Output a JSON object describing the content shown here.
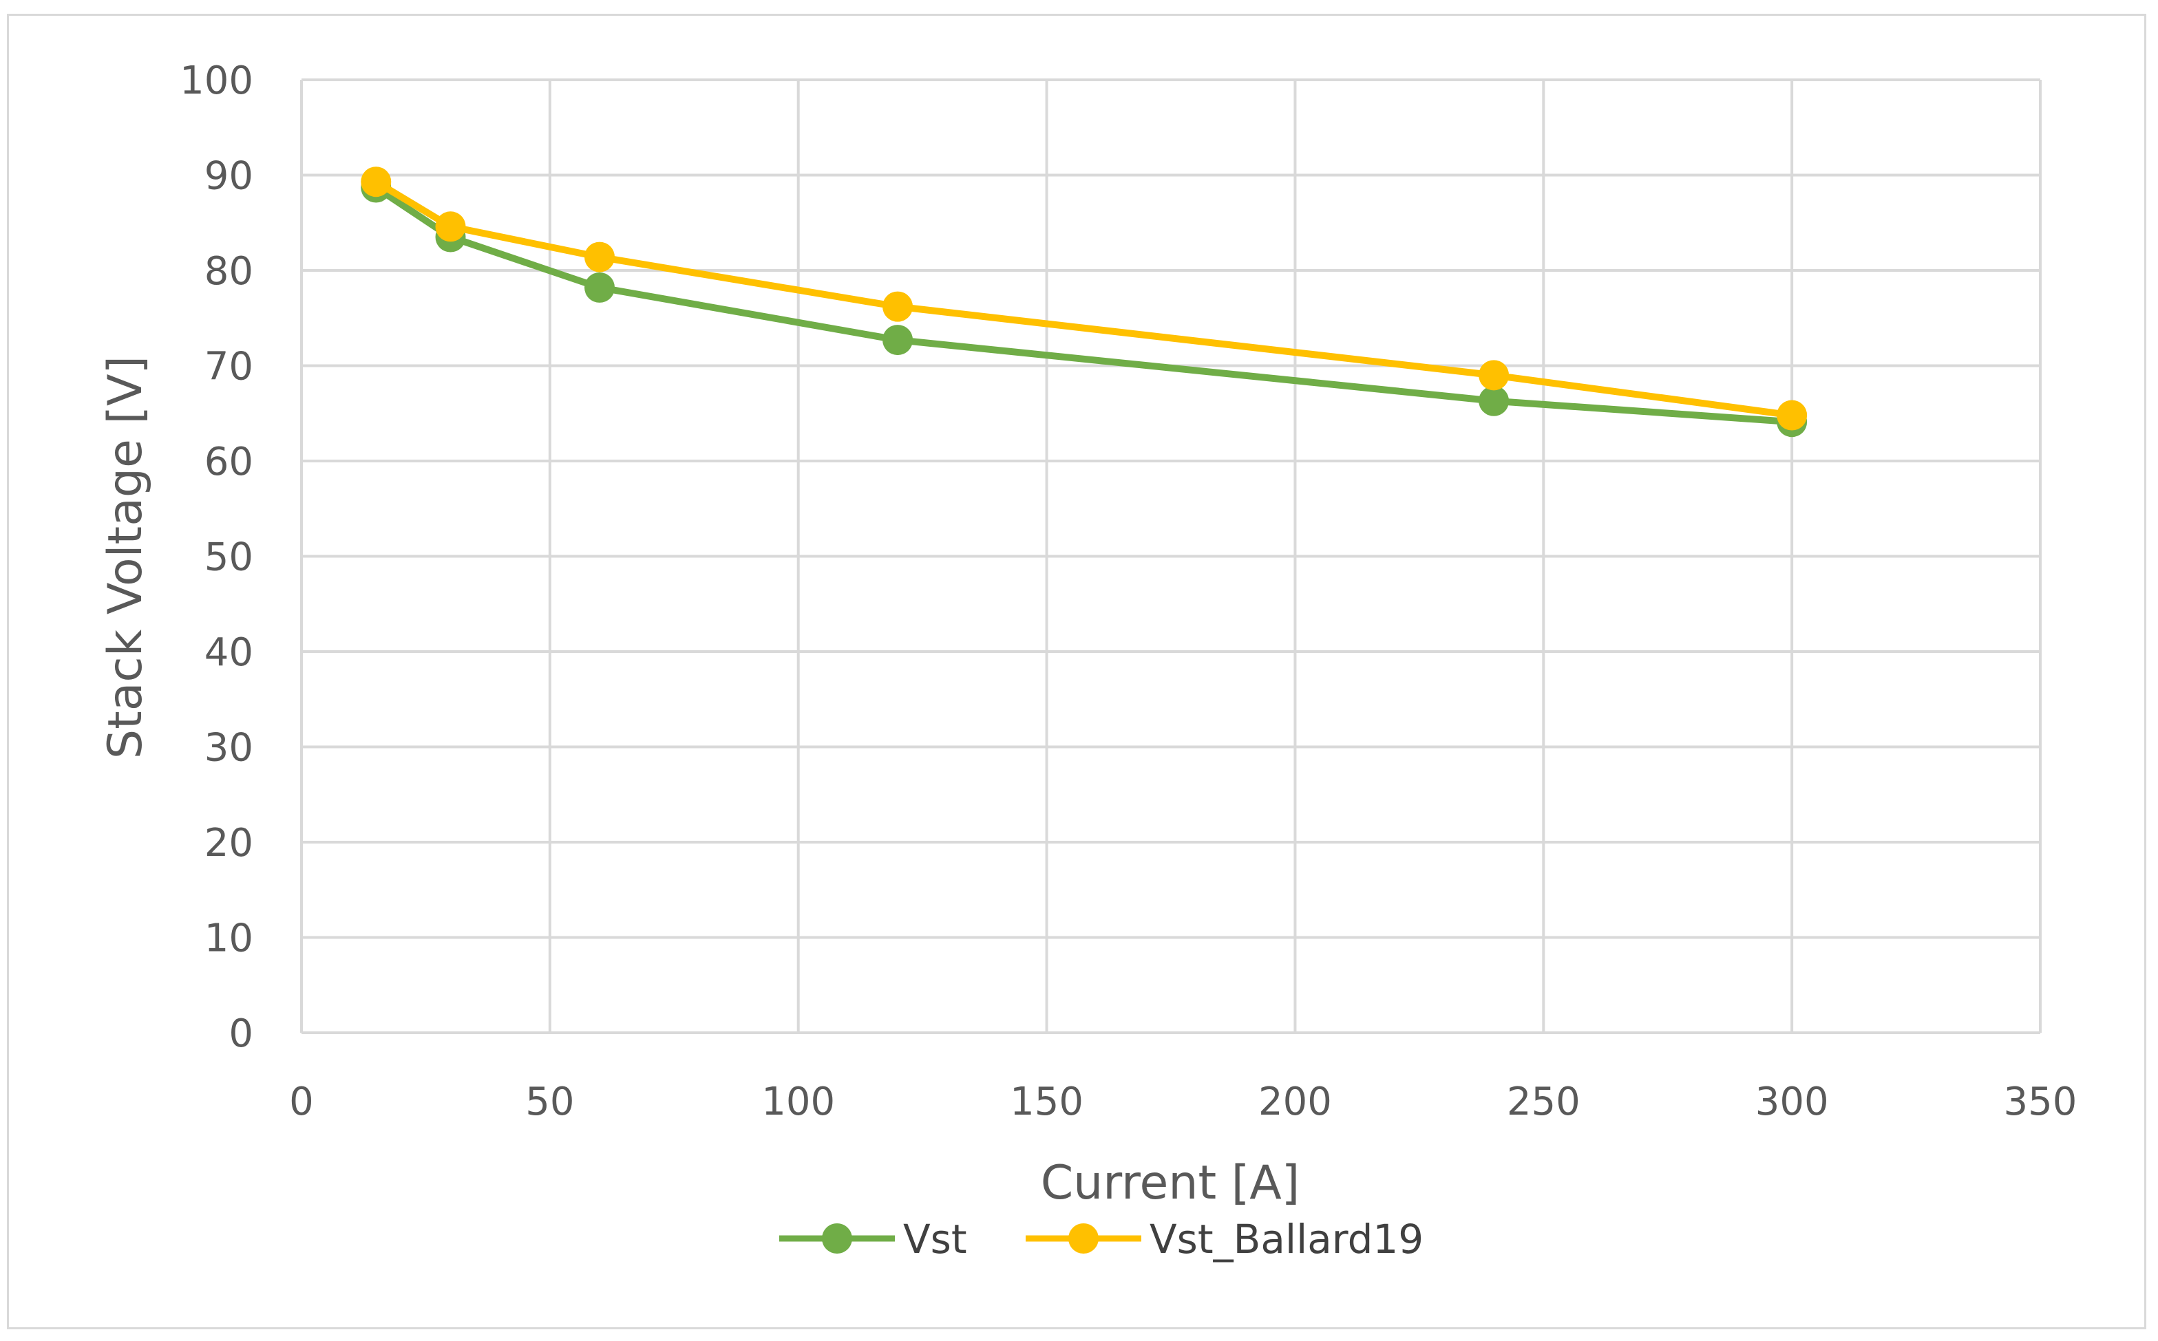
{
  "chart_data": {
    "type": "line",
    "title": "",
    "xlabel": "Current [A]",
    "ylabel": "Stack Voltage [V]",
    "xlim": [
      0,
      350
    ],
    "ylim": [
      0,
      100
    ],
    "xticks": [
      0,
      50,
      100,
      150,
      200,
      250,
      300,
      350
    ],
    "yticks": [
      0,
      10,
      20,
      30,
      40,
      50,
      60,
      70,
      80,
      90,
      100
    ],
    "grid": true,
    "legend_position": "bottom",
    "series": [
      {
        "name": "Vst",
        "color": "#70ad47",
        "x": [
          15,
          30,
          60,
          120,
          240,
          300
        ],
        "y": [
          88.7,
          83.5,
          78.2,
          72.7,
          66.3,
          64.1
        ]
      },
      {
        "name": "Vst_Ballard19",
        "color": "#ffc000",
        "x": [
          15,
          30,
          60,
          120,
          240,
          300
        ],
        "y": [
          89.3,
          84.6,
          81.4,
          76.2,
          69.0,
          64.8
        ]
      }
    ]
  }
}
